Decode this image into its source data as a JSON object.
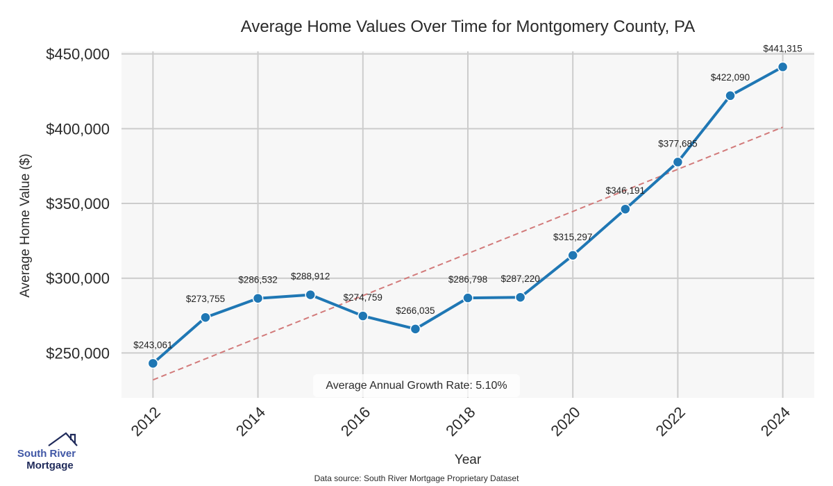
{
  "chart_data": {
    "type": "line",
    "title": "Average Home Values Over Time for Montgomery County, PA",
    "xlabel": "Year",
    "ylabel": "Average Home Value ($)",
    "x": [
      2012,
      2013,
      2014,
      2015,
      2016,
      2017,
      2018,
      2019,
      2020,
      2021,
      2022,
      2023,
      2024
    ],
    "series": [
      {
        "name": "Average Home Value",
        "color": "#1f77b4",
        "values": [
          243061,
          273755,
          286532,
          288912,
          274759,
          266035,
          286798,
          287220,
          315297,
          346191,
          377685,
          422090,
          441315
        ],
        "labels": [
          "$243,061",
          "$273,755",
          "$286,532",
          "$288,912",
          "$274,759",
          "$266,035",
          "$286,798",
          "$287,220",
          "$315,297",
          "$346,191",
          "$377,685",
          "$422,090",
          "$441,315"
        ]
      },
      {
        "name": "Trend",
        "color": "#d27a7a",
        "style": "dashed",
        "x": [
          2012,
          2024
        ],
        "values": [
          232000,
          401000
        ]
      }
    ],
    "xticks": [
      2012,
      2014,
      2016,
      2018,
      2020,
      2022,
      2024
    ],
    "xtick_labels": [
      "2012",
      "2014",
      "2016",
      "2018",
      "2020",
      "2022",
      "2024"
    ],
    "yticks": [
      250000,
      300000,
      350000,
      400000,
      450000
    ],
    "ytick_labels": [
      "$250,000",
      "$300,000",
      "$350,000",
      "$400,000",
      "$450,000"
    ],
    "xlim": [
      2011.4,
      2024.6
    ],
    "ylim": [
      220000,
      451700
    ],
    "grid": true,
    "annotation": "Average Annual Growth Rate: 5.10%",
    "background": "#f7f7f7",
    "grid_color": "#cccccc"
  },
  "footer": {
    "source": "Data source: South River Mortgage Proprietary Dataset"
  },
  "logo": {
    "line1": "South River",
    "line2": "Mortgage"
  }
}
